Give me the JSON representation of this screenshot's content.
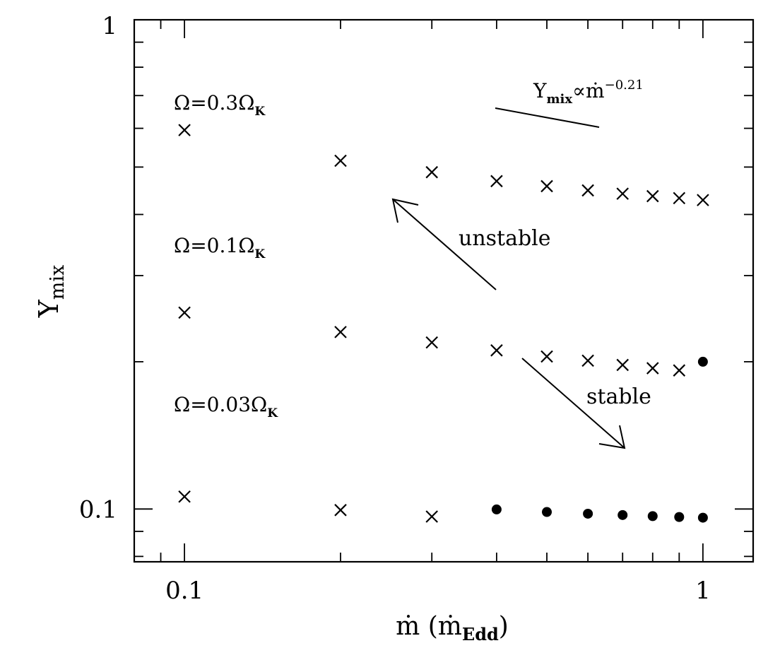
{
  "chart_data": {
    "type": "scatter",
    "xscale": "log",
    "yscale": "log",
    "xlim": [
      0.08,
      1.25
    ],
    "ylim": [
      0.078,
      1.0
    ],
    "xticks": [
      {
        "value": 0.1,
        "label": "0.1"
      },
      {
        "value": 1,
        "label": "1"
      }
    ],
    "yticks": [
      {
        "value": 0.1,
        "label": "0.1"
      },
      {
        "value": 1,
        "label": "1"
      }
    ],
    "xlabel": {
      "main": "ṁ  (ṁ",
      "sub": "Edd",
      "end": ")"
    },
    "ylabel": {
      "main": "Y",
      "sub": "mix"
    },
    "grid": false,
    "series": [
      {
        "label": {
          "prefix": "Ω=0.3Ω",
          "sub": "K"
        },
        "x": [
          0.1,
          0.2,
          0.3,
          0.4,
          0.5,
          0.6,
          0.7,
          0.8,
          0.9,
          1.0
        ],
        "y": [
          0.595,
          0.515,
          0.488,
          0.468,
          0.457,
          0.448,
          0.441,
          0.436,
          0.432,
          0.428
        ],
        "markers": [
          "x",
          "x",
          "x",
          "x",
          "x",
          "x",
          "x",
          "x",
          "x",
          "x"
        ]
      },
      {
        "label": {
          "prefix": "Ω=0.1Ω",
          "sub": "K"
        },
        "x": [
          0.1,
          0.2,
          0.3,
          0.4,
          0.5,
          0.6,
          0.7,
          0.8,
          0.9,
          1.0
        ],
        "y": [
          0.252,
          0.23,
          0.219,
          0.211,
          0.205,
          0.201,
          0.197,
          0.194,
          0.192,
          0.2
        ],
        "markers": [
          "x",
          "x",
          "x",
          "x",
          "x",
          "x",
          "x",
          "x",
          "x",
          "dot"
        ]
      },
      {
        "label": {
          "prefix": "Ω=0.03Ω",
          "sub": "K"
        },
        "x": [
          0.1,
          0.2,
          0.3,
          0.4,
          0.5,
          0.6,
          0.7,
          0.8,
          0.9,
          1.0
        ],
        "y": [
          0.106,
          0.0995,
          0.0965,
          0.0998,
          0.0986,
          0.0978,
          0.0972,
          0.0967,
          0.0963,
          0.096
        ],
        "markers": [
          "x",
          "x",
          "x",
          "dot",
          "dot",
          "dot",
          "dot",
          "dot",
          "dot",
          "dot"
        ]
      }
    ],
    "annotations": [
      {
        "kind": "scaling",
        "main": "Y",
        "sub": "mix",
        "mid": "∝ṁ",
        "sup": "−0.21"
      },
      {
        "kind": "arrow",
        "text": "unstable"
      },
      {
        "kind": "arrow",
        "text": "stable"
      }
    ]
  }
}
